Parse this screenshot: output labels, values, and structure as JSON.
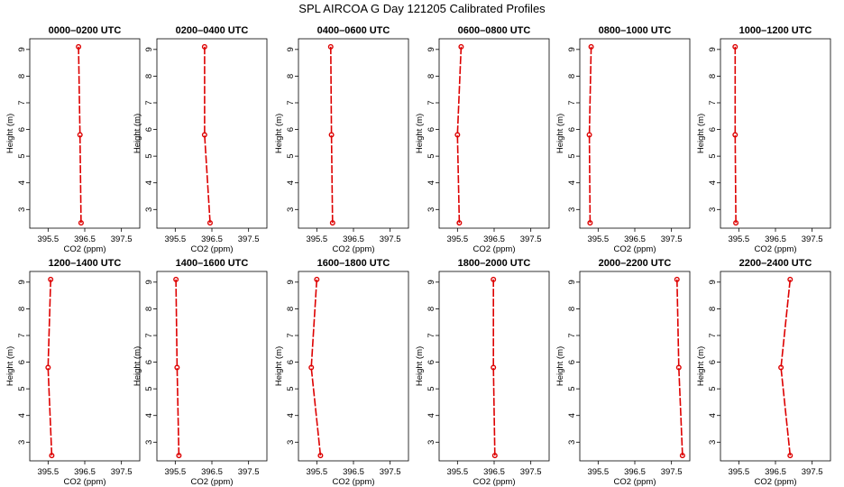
{
  "figure_title": "SPL AIRCOA G  Day 121205  Calibrated Profiles",
  "chart_data": [
    {
      "type": "line",
      "title": "0000–0200 UTC",
      "xlabel": "CO2 (ppm)",
      "ylabel": "Height (m)",
      "xlim": [
        395.0,
        398.0
      ],
      "ylim": [
        2.3,
        9.4
      ],
      "xticks": [
        "395.5",
        "396.5",
        "397.5"
      ],
      "yticks": [
        "3",
        "4",
        "5",
        "6",
        "7",
        "8",
        "9"
      ],
      "series": [
        {
          "x": [
            396.4,
            396.37,
            396.33
          ],
          "y": [
            2.5,
            5.8,
            9.1
          ]
        }
      ]
    },
    {
      "type": "line",
      "title": "0200–0400 UTC",
      "xlabel": "CO2 (ppm)",
      "ylabel": "Height (m)",
      "xlim": [
        395.0,
        398.0
      ],
      "ylim": [
        2.3,
        9.4
      ],
      "xticks": [
        "395.5",
        "396.5",
        "397.5"
      ],
      "yticks": [
        "3",
        "4",
        "5",
        "6",
        "7",
        "8",
        "9"
      ],
      "series": [
        {
          "x": [
            396.45,
            396.3,
            396.3
          ],
          "y": [
            2.5,
            5.8,
            9.1
          ]
        }
      ]
    },
    {
      "type": "line",
      "title": "0400–0600 UTC",
      "xlabel": "CO2 (ppm)",
      "ylabel": "Height (m)",
      "xlim": [
        395.0,
        398.0
      ],
      "ylim": [
        2.3,
        9.4
      ],
      "xticks": [
        "395.5",
        "396.5",
        "397.5"
      ],
      "yticks": [
        "3",
        "4",
        "5",
        "6",
        "7",
        "8",
        "9"
      ],
      "series": [
        {
          "x": [
            395.93,
            395.9,
            395.88
          ],
          "y": [
            2.5,
            5.8,
            9.1
          ]
        }
      ]
    },
    {
      "type": "line",
      "title": "0600–0800 UTC",
      "xlabel": "CO2 (ppm)",
      "ylabel": "Height (m)",
      "xlim": [
        395.0,
        398.0
      ],
      "ylim": [
        2.3,
        9.4
      ],
      "xticks": [
        "395.5",
        "396.5",
        "397.5"
      ],
      "yticks": [
        "3",
        "4",
        "5",
        "6",
        "7",
        "8",
        "9"
      ],
      "series": [
        {
          "x": [
            395.55,
            395.5,
            395.6
          ],
          "y": [
            2.5,
            5.8,
            9.1
          ]
        }
      ]
    },
    {
      "type": "line",
      "title": "0800–1000 UTC",
      "xlabel": "CO2 (ppm)",
      "ylabel": "Height (m)",
      "xlim": [
        395.0,
        398.0
      ],
      "ylim": [
        2.3,
        9.4
      ],
      "xticks": [
        "395.5",
        "396.5",
        "397.5"
      ],
      "yticks": [
        "3",
        "4",
        "5",
        "6",
        "7",
        "8",
        "9"
      ],
      "series": [
        {
          "x": [
            395.28,
            395.26,
            395.31
          ],
          "y": [
            2.5,
            5.8,
            9.1
          ]
        }
      ]
    },
    {
      "type": "line",
      "title": "1000–1200 UTC",
      "xlabel": "CO2 (ppm)",
      "ylabel": "Height (m)",
      "xlim": [
        395.0,
        398.0
      ],
      "ylim": [
        2.3,
        9.4
      ],
      "xticks": [
        "395.5",
        "396.5",
        "397.5"
      ],
      "yticks": [
        "3",
        "4",
        "5",
        "6",
        "7",
        "8",
        "9"
      ],
      "series": [
        {
          "x": [
            395.42,
            395.4,
            395.4
          ],
          "y": [
            2.5,
            5.8,
            9.1
          ]
        }
      ]
    },
    {
      "type": "line",
      "title": "1200–1400 UTC",
      "xlabel": "CO2 (ppm)",
      "ylabel": "Height (m)",
      "xlim": [
        395.0,
        398.0
      ],
      "ylim": [
        2.3,
        9.4
      ],
      "xticks": [
        "395.5",
        "396.5",
        "397.5"
      ],
      "yticks": [
        "3",
        "4",
        "5",
        "6",
        "7",
        "8",
        "9"
      ],
      "series": [
        {
          "x": [
            395.6,
            395.5,
            395.57
          ],
          "y": [
            2.5,
            5.8,
            9.1
          ]
        }
      ]
    },
    {
      "type": "line",
      "title": "1400–1600 UTC",
      "xlabel": "CO2 (ppm)",
      "ylabel": "Height (m)",
      "xlim": [
        395.0,
        398.0
      ],
      "ylim": [
        2.3,
        9.4
      ],
      "xticks": [
        "395.5",
        "396.5",
        "397.5"
      ],
      "yticks": [
        "3",
        "4",
        "5",
        "6",
        "7",
        "8",
        "9"
      ],
      "series": [
        {
          "x": [
            395.6,
            395.55,
            395.52
          ],
          "y": [
            2.5,
            5.8,
            9.1
          ]
        }
      ]
    },
    {
      "type": "line",
      "title": "1600–1800 UTC",
      "xlabel": "CO2 (ppm)",
      "ylabel": "Height (m)",
      "xlim": [
        395.0,
        398.0
      ],
      "ylim": [
        2.3,
        9.4
      ],
      "xticks": [
        "395.5",
        "396.5",
        "397.5"
      ],
      "yticks": [
        "3",
        "4",
        "5",
        "6",
        "7",
        "8",
        "9"
      ],
      "series": [
        {
          "x": [
            395.6,
            395.35,
            395.5
          ],
          "y": [
            2.5,
            5.8,
            9.1
          ]
        }
      ]
    },
    {
      "type": "line",
      "title": "1800–2000 UTC",
      "xlabel": "CO2 (ppm)",
      "ylabel": "Height (m)",
      "xlim": [
        395.0,
        398.0
      ],
      "ylim": [
        2.3,
        9.4
      ],
      "xticks": [
        "395.5",
        "396.5",
        "397.5"
      ],
      "yticks": [
        "3",
        "4",
        "5",
        "6",
        "7",
        "8",
        "9"
      ],
      "series": [
        {
          "x": [
            396.52,
            396.48,
            396.48
          ],
          "y": [
            2.5,
            5.8,
            9.1
          ]
        }
      ]
    },
    {
      "type": "line",
      "title": "2000–2200 UTC",
      "xlabel": "CO2 (ppm)",
      "ylabel": "Height (m)",
      "xlim": [
        395.0,
        398.0
      ],
      "ylim": [
        2.3,
        9.4
      ],
      "xticks": [
        "395.5",
        "396.5",
        "397.5"
      ],
      "yticks": [
        "3",
        "4",
        "5",
        "6",
        "7",
        "8",
        "9"
      ],
      "series": [
        {
          "x": [
            397.8,
            397.7,
            397.65
          ],
          "y": [
            2.5,
            5.8,
            9.1
          ]
        }
      ]
    },
    {
      "type": "line",
      "title": "2200–2400 UTC",
      "xlabel": "CO2 (ppm)",
      "ylabel": "Height (m)",
      "xlim": [
        395.0,
        398.0
      ],
      "ylim": [
        2.3,
        9.4
      ],
      "xticks": [
        "395.5",
        "396.5",
        "397.5"
      ],
      "yticks": [
        "3",
        "4",
        "5",
        "6",
        "7",
        "8",
        "9"
      ],
      "series": [
        {
          "x": [
            396.9,
            396.65,
            396.9
          ],
          "y": [
            2.5,
            5.8,
            9.1
          ]
        }
      ]
    }
  ],
  "colors": {
    "series": "#dd0000",
    "axis": "#000000",
    "background": "#ffffff"
  }
}
